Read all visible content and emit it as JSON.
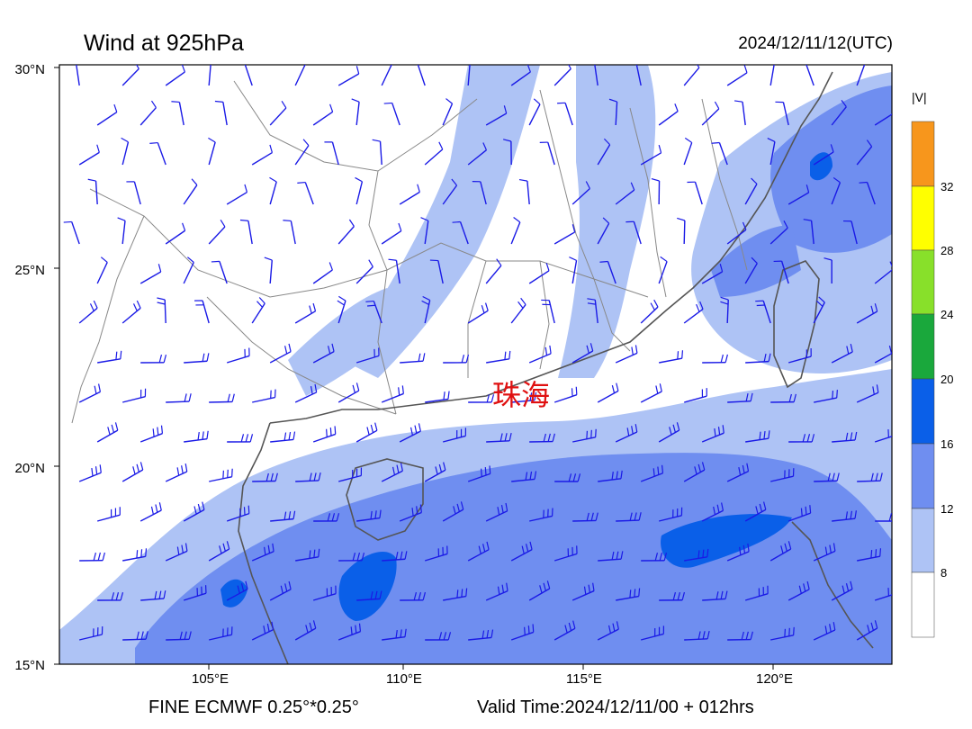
{
  "header": {
    "title": "Wind at 925hPa",
    "timestamp": "2024/12/11/12(UTC)"
  },
  "footer": {
    "model": "FINE ECMWF 0.25°*0.25°",
    "valid_time": "Valid Time:2024/12/11/00 + 012hrs"
  },
  "axes": {
    "latitudes": [
      "30°N",
      "25°N",
      "20°N",
      "15°N"
    ],
    "longitudes": [
      "105°E",
      "110°E",
      "115°E",
      "120°E"
    ]
  },
  "city_label": "珠海",
  "legend": {
    "title": "|V|",
    "ticks": [
      "32",
      "28",
      "24",
      "20",
      "16",
      "12",
      "8"
    ],
    "colors": {
      "above_32": "#f7961c",
      "28_32": "#ffff00",
      "24_28": "#88e02a",
      "20_24": "#1aa83c",
      "16_20": "#0a5fe8",
      "12_16": "#6f8ef0",
      "8_12": "#aec3f5",
      "below_8": "#ffffff"
    }
  },
  "colors": {
    "barb": "#1a1ae6",
    "border": "#777777",
    "coast": "#555555"
  }
}
